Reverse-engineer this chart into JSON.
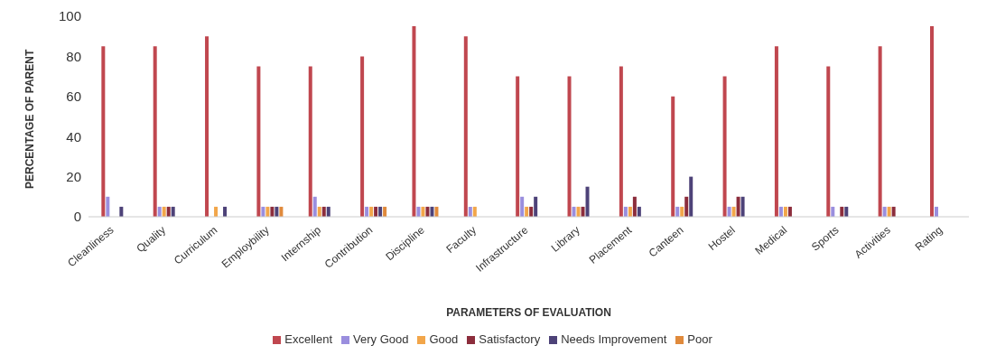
{
  "chart_data": {
    "type": "bar",
    "xlabel": "PARAMETERS OF EVALUATION",
    "ylabel": "PERCENTAGE OF PARENT",
    "categories": [
      "Cleanliness",
      "Quality",
      "Curriculum",
      "Employbility",
      "Internship",
      "Contribution",
      "Discipline",
      "Faculty",
      "Infrastructure",
      "Library",
      "Placement",
      "Canteen",
      "Hostel",
      "Medical",
      "Sports",
      "Activities",
      "Rating"
    ],
    "series": [
      {
        "name": "Excellent",
        "color": "#c0474f",
        "values": [
          85,
          85,
          90,
          75,
          75,
          80,
          95,
          90,
          70,
          70,
          75,
          60,
          70,
          85,
          75,
          85,
          95
        ]
      },
      {
        "name": "Very Good",
        "color": "#9a8ede",
        "values": [
          10,
          5,
          0,
          5,
          10,
          5,
          5,
          5,
          10,
          5,
          5,
          5,
          5,
          5,
          5,
          5,
          5
        ]
      },
      {
        "name": "Good",
        "color": "#f2a64a",
        "values": [
          0,
          5,
          5,
          5,
          5,
          5,
          5,
          5,
          5,
          5,
          5,
          5,
          5,
          5,
          0,
          5,
          0
        ]
      },
      {
        "name": "Satisfactory",
        "color": "#8c2d3c",
        "values": [
          0,
          5,
          0,
          5,
          5,
          5,
          5,
          0,
          5,
          5,
          10,
          10,
          10,
          5,
          5,
          5,
          0
        ]
      },
      {
        "name": "Needs Improvement",
        "color": "#4d4278",
        "values": [
          5,
          5,
          5,
          5,
          5,
          5,
          5,
          0,
          10,
          15,
          5,
          20,
          10,
          0,
          5,
          0,
          0
        ]
      },
      {
        "name": "Poor",
        "color": "#e08a3c",
        "values": [
          0,
          0,
          0,
          5,
          0,
          5,
          5,
          0,
          0,
          0,
          0,
          0,
          0,
          0,
          0,
          0,
          0
        ]
      }
    ],
    "ylim": [
      0,
      100
    ],
    "yticks": [
      0,
      20,
      40,
      60,
      80,
      100
    ],
    "grid": false,
    "legend": "bottom"
  }
}
